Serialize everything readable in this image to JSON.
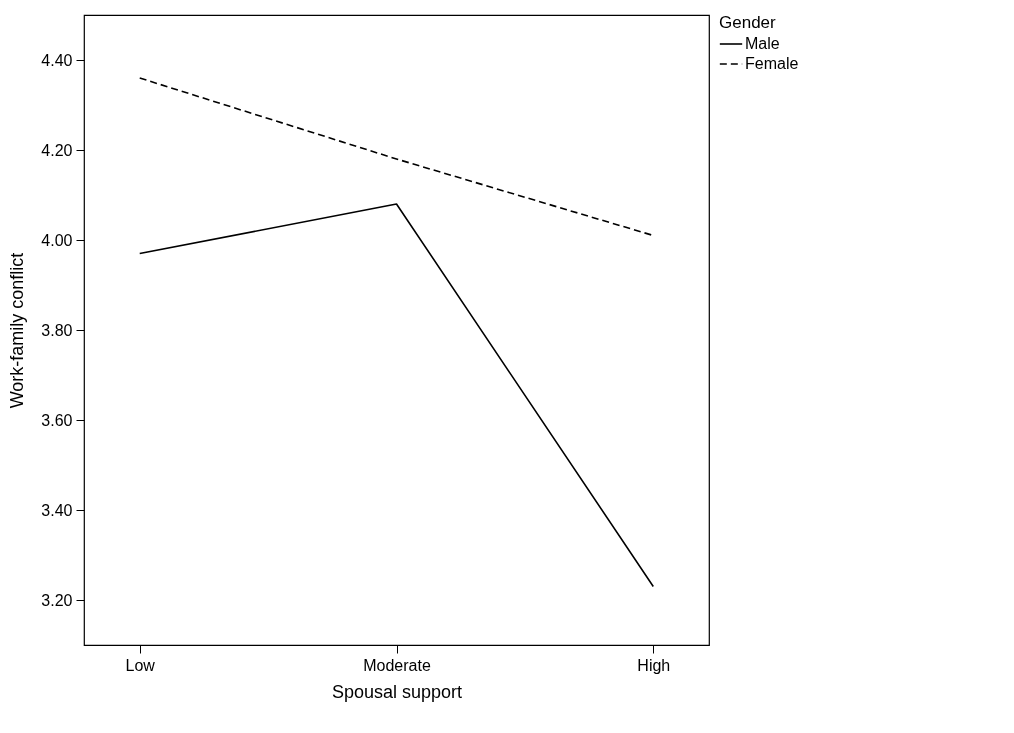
{
  "chart_data": {
    "type": "line",
    "xlabel": "Spousal support",
    "ylabel": "Work-family conflict",
    "legend_title": "Gender",
    "legend": "top right",
    "grid": false,
    "marker": "none",
    "categories": [
      "Low",
      "Moderate",
      "High"
    ],
    "ylim": [
      3.1,
      4.5
    ],
    "yticks": [
      {
        "value": 3.2,
        "label": "3.20"
      },
      {
        "value": 3.4,
        "label": "3.40"
      },
      {
        "value": 3.6,
        "label": "3.60"
      },
      {
        "value": 3.8,
        "label": "3.80"
      },
      {
        "value": 4.0,
        "label": "4.00"
      },
      {
        "value": 4.2,
        "label": "4.20"
      },
      {
        "value": 4.4,
        "label": "4.40"
      }
    ],
    "series": [
      {
        "name": "Male",
        "color": "#000000",
        "line_style": "solid",
        "values": [
          3.97,
          4.08,
          3.23
        ]
      },
      {
        "name": "Female",
        "color": "#000000",
        "line_style": "dashed",
        "values": [
          4.36,
          4.18,
          4.01
        ]
      }
    ]
  }
}
